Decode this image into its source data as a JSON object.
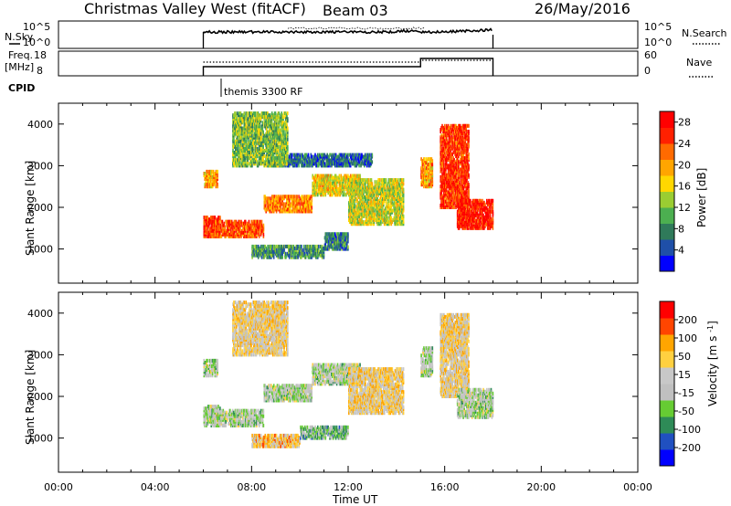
{
  "header": {
    "station": "Christmas Valley West (fitACF)",
    "beam": "Beam 03",
    "date": "26/May/2016"
  },
  "strips": {
    "nsky_label": "N.Sky",
    "nsky_top": "10^5",
    "nsky_bottom": "10^0",
    "nsky_right_top": "10^5",
    "nsky_right_bottom": "10^0",
    "nsearch_label": "N.Search",
    "freq_label_1": "Freq.",
    "freq_label_2": "[MHz]",
    "freq_top": "18",
    "freq_bottom": "8",
    "nave_top": "60",
    "nave_bottom": "0",
    "nave_label": "Nave",
    "cpid_label": "CPID",
    "cpid_value": "themis 3300 RF"
  },
  "colors": {
    "power_scale": [
      "#0000ff",
      "#1f4fa8",
      "#2f7a5a",
      "#4caf50",
      "#9acd32",
      "#ffd700",
      "#ffa500",
      "#ff6a00",
      "#ff2000",
      "#ff0000"
    ],
    "velocity_scale": [
      "#0000ff",
      "#2050c0",
      "#2e8b57",
      "#66cc33",
      "#c0c0c0",
      "#c8c8c8",
      "#ffd040",
      "#ffa500",
      "#ff4500",
      "#ff0000"
    ]
  },
  "chart_data": [
    {
      "type": "heatmap",
      "name": "power",
      "ylabel": "Slant Range [km]",
      "yticks": [
        "1000",
        "2000",
        "3000",
        "4000"
      ],
      "xticks": [
        "00:00",
        "04:00",
        "08:00",
        "12:00",
        "16:00",
        "20:00",
        "00:00"
      ],
      "xlim_hours": [
        0,
        24
      ],
      "ylim_km": [
        180,
        4500
      ],
      "colorbar_label": "Power [dB]",
      "colorbar_ticks": [
        "4",
        "8",
        "12",
        "16",
        "20",
        "24",
        "28"
      ],
      "colorbar_range": [
        0,
        30
      ],
      "bands": [
        {
          "t": [
            6.0,
            6.7
          ],
          "r": [
            1300,
            1800
          ],
          "level": 0.85
        },
        {
          "t": [
            6.0,
            6.6
          ],
          "r": [
            2500,
            2900
          ],
          "level": 0.65
        },
        {
          "t": [
            6.3,
            8.5
          ],
          "r": [
            1300,
            1700
          ],
          "level": 0.8
        },
        {
          "t": [
            8.5,
            10.5
          ],
          "r": [
            1900,
            2300
          ],
          "level": 0.7
        },
        {
          "t": [
            10.5,
            12.5
          ],
          "r": [
            2300,
            2800
          ],
          "level": 0.55
        },
        {
          "t": [
            8.0,
            11.0
          ],
          "r": [
            800,
            1100
          ],
          "level": 0.3
        },
        {
          "t": [
            11.0,
            12.0
          ],
          "r": [
            1000,
            1400
          ],
          "level": 0.25
        },
        {
          "t": [
            12.0,
            14.3
          ],
          "r": [
            1600,
            2700
          ],
          "level": 0.5
        },
        {
          "t": [
            9.0,
            13.0
          ],
          "r": [
            3000,
            3300
          ],
          "level": 0.2
        },
        {
          "t": [
            15.0,
            15.5
          ],
          "r": [
            2500,
            3200
          ],
          "level": 0.65
        },
        {
          "t": [
            15.8,
            17.0
          ],
          "r": [
            2000,
            4000
          ],
          "level": 0.85
        },
        {
          "t": [
            16.5,
            18.0
          ],
          "r": [
            1500,
            2200
          ],
          "level": 0.9
        },
        {
          "t": [
            7.2,
            9.5
          ],
          "r": [
            3000,
            4300
          ],
          "level": 0.4
        }
      ]
    },
    {
      "type": "heatmap",
      "name": "velocity",
      "ylabel": "Slant Range [km]",
      "yticks": [
        "1000",
        "2000",
        "3000",
        "4000"
      ],
      "xticks": [
        "00:00",
        "04:00",
        "08:00",
        "12:00",
        "16:00",
        "20:00",
        "00:00"
      ],
      "xlabel": "Time UT",
      "xlim_hours": [
        0,
        24
      ],
      "ylim_km": [
        180,
        4500
      ],
      "colorbar_label": "Velocity [m s^-1]",
      "colorbar_ticks": [
        "200",
        "100",
        "50",
        "15",
        "-15",
        "-50",
        "-100",
        "-200"
      ],
      "colorbar_range": [
        -250,
        250
      ],
      "bands": [
        {
          "t": [
            6.0,
            6.7
          ],
          "r": [
            1300,
            1800
          ],
          "level": 0.45
        },
        {
          "t": [
            6.0,
            6.6
          ],
          "r": [
            2500,
            2900
          ],
          "level": 0.45
        },
        {
          "t": [
            6.3,
            8.5
          ],
          "r": [
            1300,
            1700
          ],
          "level": 0.45
        },
        {
          "t": [
            8.5,
            10.5
          ],
          "r": [
            1900,
            2300
          ],
          "level": 0.45
        },
        {
          "t": [
            10.5,
            12.5
          ],
          "r": [
            2300,
            2800
          ],
          "level": 0.45
        },
        {
          "t": [
            8.0,
            10.0
          ],
          "r": [
            800,
            1100
          ],
          "level": 0.65
        },
        {
          "t": [
            10.0,
            12.0
          ],
          "r": [
            1000,
            1300
          ],
          "level": 0.35
        },
        {
          "t": [
            12.0,
            14.3
          ],
          "r": [
            1600,
            2700
          ],
          "level": 0.62
        },
        {
          "t": [
            15.0,
            15.5
          ],
          "r": [
            2500,
            3200
          ],
          "level": 0.45
        },
        {
          "t": [
            15.8,
            17.0
          ],
          "r": [
            2000,
            4000
          ],
          "level": 0.6
        },
        {
          "t": [
            16.5,
            18.0
          ],
          "r": [
            1500,
            2200
          ],
          "level": 0.45
        },
        {
          "t": [
            7.2,
            9.5
          ],
          "r": [
            3000,
            4300
          ],
          "level": 0.6
        }
      ]
    }
  ]
}
